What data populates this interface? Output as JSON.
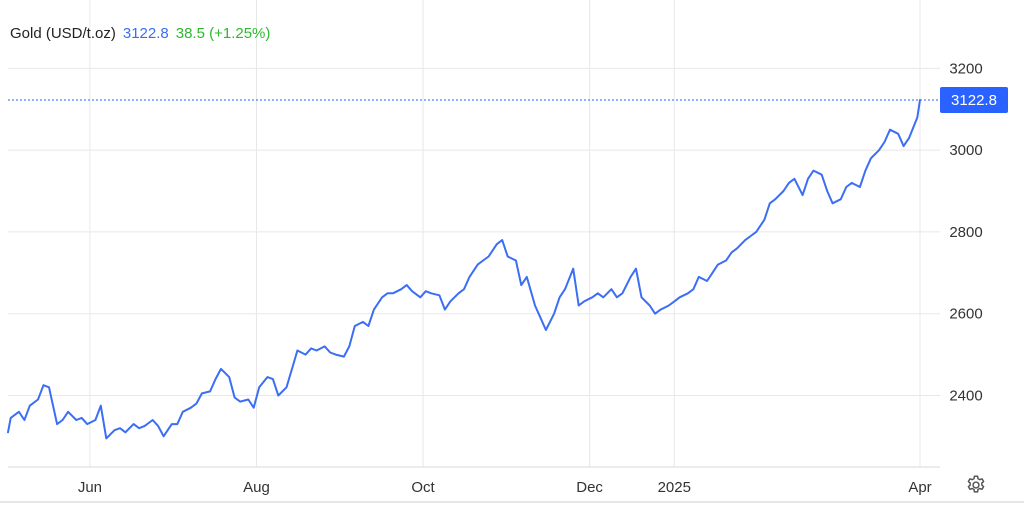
{
  "legend": {
    "instrument": "Gold (USD/t.oz)",
    "last": "3122.8",
    "change": "38.5 (+1.25%)"
  },
  "colors": {
    "line": "#3b6ef5",
    "price_tag_bg": "#2962ff",
    "change_positive": "#2eb82e",
    "grid": "#e8e8e8",
    "axis_text": "#333333"
  },
  "chart_data": {
    "type": "line",
    "title": "Gold (USD/t.oz)",
    "xlabel": "",
    "ylabel": "",
    "xlim": [
      "2025-05-02",
      "2025-04-06"
    ],
    "ylim": [
      2225,
      3245
    ],
    "y_ticks": [
      2400,
      2600,
      2800,
      3000,
      3200
    ],
    "x_ticks": [
      {
        "label": "Jun",
        "date": "2024-06-01"
      },
      {
        "label": "Aug",
        "date": "2024-08-01"
      },
      {
        "label": "Oct",
        "date": "2024-10-01"
      },
      {
        "label": "Dec",
        "date": "2024-12-01"
      },
      {
        "label": "2025",
        "date": "2025-01-01"
      },
      {
        "label": "Apr",
        "date": "2025-04-01"
      }
    ],
    "last_value": 3122.8,
    "last_value_label": "3122.8",
    "grid": true,
    "series": [
      {
        "name": "Gold (USD/t.oz)",
        "x": [
          "2024-05-02",
          "2024-05-03",
          "2024-05-06",
          "2024-05-08",
          "2024-05-10",
          "2024-05-13",
          "2024-05-15",
          "2024-05-17",
          "2024-05-20",
          "2024-05-22",
          "2024-05-24",
          "2024-05-27",
          "2024-05-29",
          "2024-05-31",
          "2024-06-03",
          "2024-06-05",
          "2024-06-07",
          "2024-06-10",
          "2024-06-12",
          "2024-06-14",
          "2024-06-17",
          "2024-06-19",
          "2024-06-21",
          "2024-06-24",
          "2024-06-26",
          "2024-06-28",
          "2024-07-01",
          "2024-07-03",
          "2024-07-05",
          "2024-07-08",
          "2024-07-10",
          "2024-07-12",
          "2024-07-15",
          "2024-07-17",
          "2024-07-19",
          "2024-07-22",
          "2024-07-24",
          "2024-07-26",
          "2024-07-29",
          "2024-07-31",
          "2024-08-02",
          "2024-08-05",
          "2024-08-07",
          "2024-08-09",
          "2024-08-12",
          "2024-08-14",
          "2024-08-16",
          "2024-08-19",
          "2024-08-21",
          "2024-08-23",
          "2024-08-26",
          "2024-08-28",
          "2024-08-30",
          "2024-09-02",
          "2024-09-04",
          "2024-09-06",
          "2024-09-09",
          "2024-09-11",
          "2024-09-13",
          "2024-09-16",
          "2024-09-18",
          "2024-09-20",
          "2024-09-23",
          "2024-09-25",
          "2024-09-27",
          "2024-09-30",
          "2024-10-02",
          "2024-10-04",
          "2024-10-07",
          "2024-10-09",
          "2024-10-11",
          "2024-10-14",
          "2024-10-16",
          "2024-10-18",
          "2024-10-21",
          "2024-10-23",
          "2024-10-25",
          "2024-10-28",
          "2024-10-30",
          "2024-11-01",
          "2024-11-04",
          "2024-11-06",
          "2024-11-08",
          "2024-11-11",
          "2024-11-13",
          "2024-11-15",
          "2024-11-18",
          "2024-11-20",
          "2024-11-22",
          "2024-11-25",
          "2024-11-27",
          "2024-11-29",
          "2024-12-02",
          "2024-12-04",
          "2024-12-06",
          "2024-12-09",
          "2024-12-11",
          "2024-12-13",
          "2024-12-16",
          "2024-12-18",
          "2024-12-20",
          "2024-12-23",
          "2024-12-25",
          "2024-12-27",
          "2024-12-30",
          "2025-01-01",
          "2025-01-03",
          "2025-01-06",
          "2025-01-08",
          "2025-01-10",
          "2025-01-13",
          "2025-01-15",
          "2025-01-17",
          "2025-01-20",
          "2025-01-22",
          "2025-01-24",
          "2025-01-27",
          "2025-01-29",
          "2025-01-31",
          "2025-02-03",
          "2025-02-05",
          "2025-02-07",
          "2025-02-10",
          "2025-02-12",
          "2025-02-14",
          "2025-02-17",
          "2025-02-19",
          "2025-02-21",
          "2025-02-24",
          "2025-02-26",
          "2025-02-28",
          "2025-03-03",
          "2025-03-05",
          "2025-03-07",
          "2025-03-10",
          "2025-03-12",
          "2025-03-14",
          "2025-03-17",
          "2025-03-19",
          "2025-03-21",
          "2025-03-24",
          "2025-03-26",
          "2025-03-28",
          "2025-03-31",
          "2025-04-01"
        ],
        "y": [
          2310,
          2345,
          2360,
          2340,
          2375,
          2390,
          2425,
          2420,
          2330,
          2340,
          2360,
          2340,
          2345,
          2330,
          2340,
          2375,
          2295,
          2315,
          2320,
          2310,
          2330,
          2320,
          2325,
          2340,
          2325,
          2300,
          2330,
          2330,
          2360,
          2370,
          2380,
          2405,
          2410,
          2440,
          2465,
          2445,
          2395,
          2385,
          2390,
          2370,
          2420,
          2445,
          2440,
          2400,
          2420,
          2465,
          2510,
          2500,
          2515,
          2510,
          2520,
          2505,
          2500,
          2495,
          2520,
          2570,
          2580,
          2570,
          2610,
          2640,
          2650,
          2650,
          2660,
          2670,
          2655,
          2640,
          2655,
          2650,
          2645,
          2610,
          2630,
          2650,
          2660,
          2690,
          2720,
          2730,
          2740,
          2770,
          2780,
          2740,
          2730,
          2670,
          2690,
          2620,
          2590,
          2560,
          2600,
          2640,
          2660,
          2710,
          2620,
          2630,
          2640,
          2650,
          2640,
          2660,
          2640,
          2650,
          2690,
          2710,
          2640,
          2620,
          2600,
          2610,
          2620,
          2630,
          2640,
          2650,
          2660,
          2690,
          2680,
          2700,
          2720,
          2730,
          2750,
          2760,
          2780,
          2790,
          2800,
          2830,
          2870,
          2880,
          2900,
          2920,
          2930,
          2890,
          2930,
          2950,
          2940,
          2900,
          2870,
          2880,
          2910,
          2920,
          2910,
          2950,
          2980,
          3000,
          3020,
          3050,
          3040,
          3010,
          3030,
          3080,
          3122.8
        ]
      }
    ]
  }
}
